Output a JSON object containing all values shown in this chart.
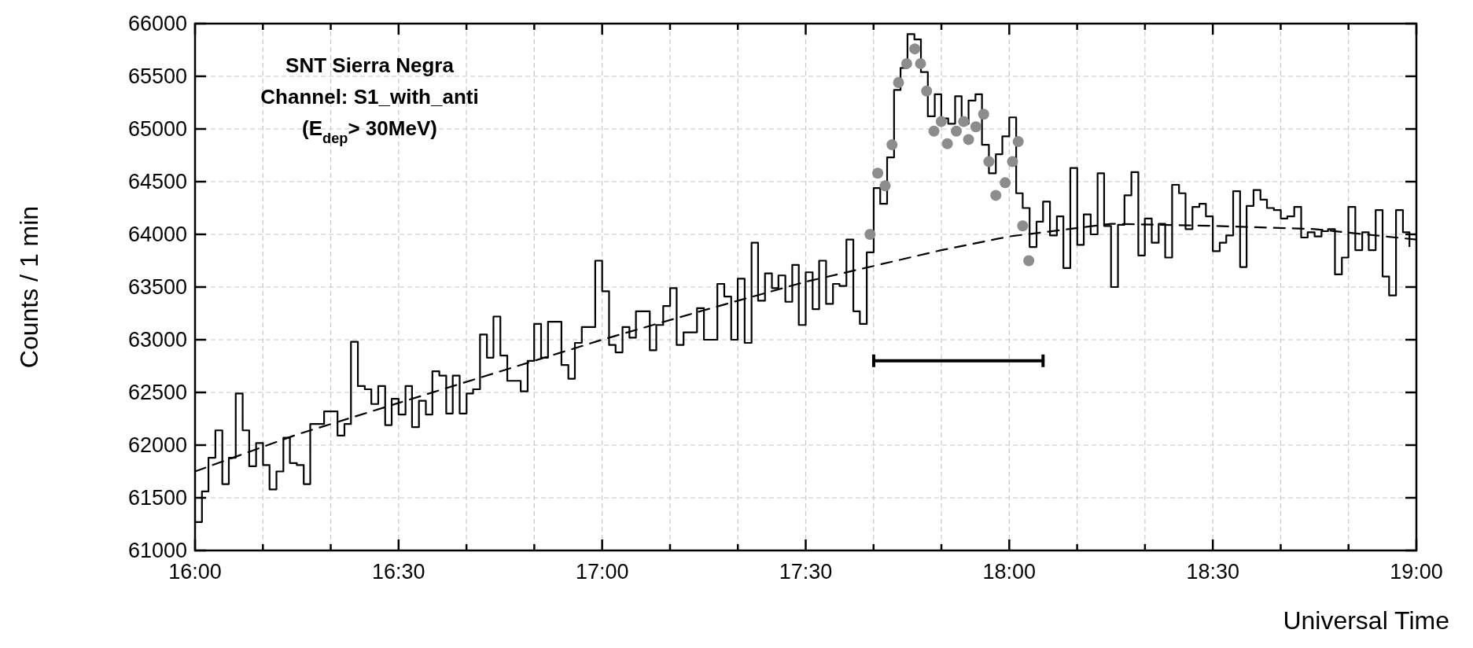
{
  "chart_data": {
    "type": "step",
    "xlabel": "Universal Time",
    "ylabel": "Counts / 1 min",
    "annotations": [
      "SNT Sierra Negra",
      "Channel: S1_with_anti",
      "(E$_{dep}$> 30MeV)"
    ],
    "xlim": [
      16,
      19
    ],
    "ylim": [
      61000,
      66000
    ],
    "xticks": [
      {
        "value": 16,
        "label": "16:00"
      },
      {
        "value": 16.1667,
        "label": null
      },
      {
        "value": 16.3333,
        "label": null
      },
      {
        "value": 16.5,
        "label": "16:30"
      },
      {
        "value": 16.6667,
        "label": null
      },
      {
        "value": 16.8333,
        "label": null
      },
      {
        "value": 17,
        "label": "17:00"
      },
      {
        "value": 17.1667,
        "label": null
      },
      {
        "value": 17.3333,
        "label": null
      },
      {
        "value": 17.5,
        "label": "17:30"
      },
      {
        "value": 17.6667,
        "label": null
      },
      {
        "value": 17.8333,
        "label": null
      },
      {
        "value": 18,
        "label": "18:00"
      },
      {
        "value": 18.1667,
        "label": null
      },
      {
        "value": 18.3333,
        "label": null
      },
      {
        "value": 18.5,
        "label": "18:30"
      },
      {
        "value": 18.6667,
        "label": null
      },
      {
        "value": 18.8333,
        "label": null
      },
      {
        "value": 19,
        "label": "19:00"
      }
    ],
    "yticks": [
      61000,
      61500,
      62000,
      62500,
      63000,
      63500,
      64000,
      64500,
      65000,
      65500,
      66000
    ],
    "grid": true,
    "series": [
      {
        "color": "#000000",
        "x": [
          16,
          16.017,
          16.033,
          16.05,
          16.067,
          16.083,
          16.1,
          16.117,
          16.133,
          16.15,
          16.167,
          16.183,
          16.2,
          16.217,
          16.233,
          16.25,
          16.267,
          16.283,
          16.3,
          16.317,
          16.333,
          16.35,
          16.367,
          16.383,
          16.4,
          16.417,
          16.433,
          16.45,
          16.467,
          16.483,
          16.5,
          16.517,
          16.533,
          16.55,
          16.567,
          16.583,
          16.6,
          16.617,
          16.633,
          16.65,
          16.667,
          16.683,
          16.7,
          16.717,
          16.733,
          16.75,
          16.767,
          16.783,
          16.8,
          16.817,
          16.833,
          16.85,
          16.867,
          16.883,
          16.9,
          16.917,
          16.933,
          16.95,
          16.967,
          16.983,
          17,
          17.017,
          17.033,
          17.05,
          17.067,
          17.083,
          17.1,
          17.117,
          17.133,
          17.15,
          17.167,
          17.183,
          17.2,
          17.217,
          17.233,
          17.25,
          17.267,
          17.283,
          17.3,
          17.317,
          17.333,
          17.35,
          17.367,
          17.383,
          17.4,
          17.417,
          17.433,
          17.45,
          17.467,
          17.483,
          17.5,
          17.517,
          17.533,
          17.55,
          17.567,
          17.583,
          17.6,
          17.617,
          17.633,
          17.65,
          17.667,
          17.683,
          17.7,
          17.717,
          17.733,
          17.75,
          17.767,
          17.783,
          17.8,
          17.817,
          17.833,
          17.85,
          17.867,
          17.883,
          17.9,
          17.917,
          17.933,
          17.95,
          17.967,
          17.983,
          18,
          18.017,
          18.033,
          18.05,
          18.067,
          18.083,
          18.1,
          18.117,
          18.133,
          18.15,
          18.167,
          18.183,
          18.2,
          18.217,
          18.233,
          18.25,
          18.267,
          18.283,
          18.3,
          18.317,
          18.333,
          18.35,
          18.367,
          18.383,
          18.4,
          18.417,
          18.433,
          18.45,
          18.467,
          18.483,
          18.5,
          18.517,
          18.533,
          18.55,
          18.567,
          18.583,
          18.6,
          18.617,
          18.633,
          18.65,
          18.667,
          18.683,
          18.7,
          18.717,
          18.733,
          18.75,
          18.767,
          18.783,
          18.8,
          18.817,
          18.833,
          18.85,
          18.867,
          18.883,
          18.9,
          18.917,
          18.933,
          18.95,
          18.967,
          18.983
        ],
        "values": [
          61270,
          61560,
          61880,
          62140,
          61630,
          61880,
          62490,
          62140,
          61800,
          62020,
          61810,
          61580,
          61750,
          62070,
          61830,
          61810,
          61630,
          62200,
          62200,
          62320,
          62320,
          62090,
          62200,
          62980,
          62560,
          62530,
          62390,
          62560,
          62190,
          62440,
          62290,
          62560,
          62170,
          62420,
          62290,
          62700,
          62660,
          62300,
          62660,
          62300,
          62490,
          62530,
          63050,
          62830,
          63220,
          62850,
          62610,
          62610,
          62510,
          62800,
          63150,
          62830,
          63170,
          63170,
          62760,
          62630,
          62970,
          63120,
          63120,
          63750,
          63460,
          62950,
          62880,
          63120,
          63020,
          63270,
          63270,
          62900,
          63140,
          63320,
          63490,
          62950,
          63070,
          63070,
          63300,
          63000,
          63000,
          63530,
          63410,
          63000,
          63580,
          62970,
          63920,
          63370,
          63630,
          63490,
          63610,
          63360,
          63710,
          63140,
          63640,
          63290,
          63750,
          63340,
          63530,
          63510,
          63950,
          63270,
          63150,
          63830,
          64440,
          64290,
          64730,
          65370,
          65580,
          65900,
          65850,
          65540,
          65120,
          65330,
          65100,
          65050,
          65310,
          65050,
          65270,
          65330,
          64850,
          64580,
          64760,
          64930,
          65110,
          64390,
          64250,
          63880,
          64120,
          64310,
          63990,
          64170,
          63680,
          64630,
          63900,
          64190,
          64000,
          64580,
          64080,
          63500,
          64090,
          64370,
          64590,
          63800,
          64150,
          63920,
          64100,
          63780,
          64470,
          64390,
          64050,
          64260,
          64290,
          64170,
          63840,
          63920,
          63990,
          64410,
          63690,
          64270,
          64420,
          64330,
          64250,
          64230,
          64150,
          64170,
          64260,
          63970,
          64020,
          63980,
          64030,
          64050,
          63620,
          63780,
          64260,
          63850,
          64020,
          63850,
          64230,
          63600,
          63420,
          64230,
          64020,
          63880
        ]
      },
      {
        "type": "line",
        "color": "#000000",
        "line_style": "dashed",
        "x": [
          16,
          16.25,
          16.5,
          16.75,
          17,
          17.25,
          17.5,
          17.667,
          17.833,
          18,
          18.25,
          18.5,
          18.75,
          19
        ],
        "values": [
          61750,
          62100,
          62400,
          62700,
          63000,
          63280,
          63550,
          63700,
          63850,
          63980,
          64100,
          64080,
          64050,
          63950
        ]
      },
      {
        "type": "scatter",
        "color": "#8c8c8c",
        "marker": "circle",
        "x": [
          17.658,
          17.677,
          17.695,
          17.712,
          17.728,
          17.748,
          17.768,
          17.782,
          17.797,
          17.815,
          17.833,
          17.848,
          17.87,
          17.888,
          17.9,
          17.918,
          17.937,
          17.95,
          17.967,
          17.99,
          18.008,
          18.022,
          18.033,
          18.048
        ],
        "values": [
          64000,
          64580,
          64460,
          64850,
          65440,
          65620,
          65760,
          65620,
          65360,
          64980,
          65070,
          64860,
          64980,
          65070,
          64900,
          65020,
          65140,
          64690,
          64370,
          64490,
          64690,
          64880,
          64080,
          63750
        ]
      },
      {
        "type": "line",
        "color": "#000000",
        "line_style": "solid",
        "x": [
          17.667,
          18.083
        ],
        "values": [
          62800,
          62800
        ]
      }
    ]
  }
}
